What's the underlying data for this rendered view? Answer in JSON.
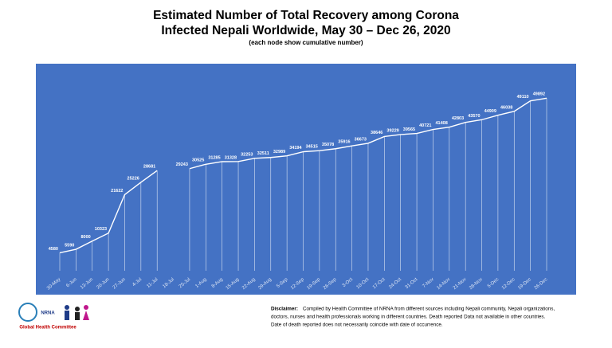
{
  "chart_data": {
    "type": "line",
    "title": [
      "Estimated Number of Total Recovery among Corona",
      "Infected Nepali Worldwide, May 30 – Dec 26, 2020"
    ],
    "subtitle": "(each node show cumulative number)",
    "categories": [
      "30-May",
      "6-Jun",
      "13-Jun",
      "20-Jun",
      "27-Jun",
      "4-Jul",
      "11-Jul",
      "18-Jul",
      "25-Jul",
      "1-Aug",
      "8-Aug",
      "15-Aug",
      "22-Aug",
      "29-Aug",
      "5-Sep",
      "12-Sep",
      "19-Sep",
      "26-Sep",
      "3-Oct",
      "10-Oct",
      "17-Oct",
      "24-Oct",
      "31-Oct",
      "7-Nov",
      "14-Nov",
      "21-Nov",
      "28-Nov",
      "5-Dec",
      "12-Dec",
      "19-Dec",
      "26-Dec"
    ],
    "values": [
      4580,
      5590,
      8000,
      10323,
      21622,
      25226,
      28681,
      null,
      29243,
      30525,
      31285,
      31328,
      32253,
      32511,
      32989,
      34194,
      34515,
      35078,
      35916,
      36673,
      38646,
      39229,
      39565,
      40721,
      41408,
      42803,
      43570,
      44909,
      46038,
      49110,
      49892
    ],
    "color": "#ffffff",
    "background": "#4472c4",
    "ylim": [
      0,
      60000
    ]
  },
  "footer": {
    "disclaimer_label": "Disclaimer:",
    "disclaimer": [
      "Compiled by Health Committee of NRNA from different sources including Nepali community, Nepali organizations,",
      "doctors, nurses and health professionals working in different countries. Death reported Data not available in other countries.",
      "Date of death reported does not necessarily coincide with date of occurrence."
    ],
    "logo_text": "NRNA",
    "logo_caption": "Global Health Committee"
  }
}
